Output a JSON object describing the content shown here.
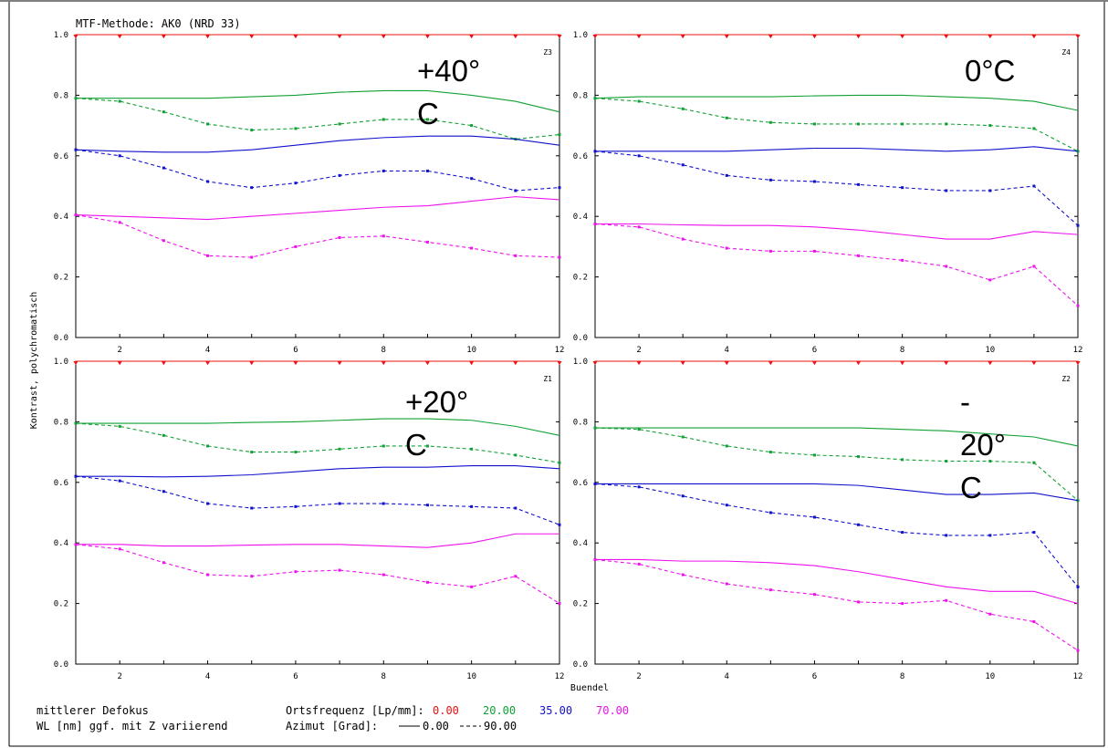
{
  "header": {
    "title": "MTF-Methode: AK0 (NRD 33)"
  },
  "axes": {
    "ylabel": "Kontrast, polychromatisch",
    "xlabel": "Buendel"
  },
  "footer": {
    "line1_left": "mittlerer Defokus",
    "line2_left": "WL [nm] ggf. mit Z variierend",
    "freq_label": "Ortsfrequenz [Lp/mm]:",
    "freq_values": [
      "0.00",
      "20.00",
      "35.00",
      "70.00"
    ],
    "azimut_label": "Azimut [Grad]:",
    "azimut_solid": "0.00",
    "azimut_dashed": "90.00"
  },
  "colors": {
    "0.00": "#ee1111",
    "20.00": "#11a033",
    "35.00": "#1111cc",
    "70.00": "#ee11ee"
  },
  "chart_data": [
    {
      "type": "line",
      "panel": "top-left",
      "zone": "Z3",
      "annotation": [
        "+40°",
        "C"
      ],
      "x": [
        1,
        2,
        3,
        4,
        5,
        6,
        7,
        8,
        9,
        10,
        11,
        12
      ],
      "xlim": [
        1,
        12
      ],
      "ylim": [
        0,
        1
      ],
      "xticks": [
        "2",
        "4",
        "6",
        "8",
        "10",
        "12"
      ],
      "yticks": [
        "0.0",
        "0.2",
        "0.4",
        "0.6",
        "0.8",
        "1.0"
      ],
      "series": [
        {
          "freq": "0.00",
          "azimut": "0.00",
          "values": [
            1,
            1,
            1,
            1,
            1,
            1,
            1,
            1,
            1,
            1,
            1,
            1
          ]
        },
        {
          "freq": "0.00",
          "azimut": "90.00",
          "values": [
            1,
            1,
            1,
            1,
            1,
            1,
            1,
            1,
            1,
            1,
            1,
            1
          ]
        },
        {
          "freq": "20.00",
          "azimut": "0.00",
          "values": [
            0.79,
            0.79,
            0.79,
            0.79,
            0.795,
            0.8,
            0.81,
            0.815,
            0.815,
            0.8,
            0.78,
            0.745
          ]
        },
        {
          "freq": "20.00",
          "azimut": "90.00",
          "values": [
            0.79,
            0.78,
            0.745,
            0.705,
            0.685,
            0.69,
            0.705,
            0.72,
            0.72,
            0.7,
            0.655,
            0.67
          ]
        },
        {
          "freq": "35.00",
          "azimut": "0.00",
          "values": [
            0.62,
            0.615,
            0.612,
            0.612,
            0.62,
            0.635,
            0.65,
            0.66,
            0.665,
            0.665,
            0.655,
            0.635
          ]
        },
        {
          "freq": "35.00",
          "azimut": "90.00",
          "values": [
            0.62,
            0.6,
            0.56,
            0.515,
            0.495,
            0.51,
            0.535,
            0.55,
            0.55,
            0.525,
            0.485,
            0.495
          ]
        },
        {
          "freq": "70.00",
          "azimut": "0.00",
          "values": [
            0.405,
            0.4,
            0.395,
            0.39,
            0.4,
            0.41,
            0.42,
            0.43,
            0.435,
            0.45,
            0.465,
            0.455
          ]
        },
        {
          "freq": "70.00",
          "azimut": "90.00",
          "values": [
            0.405,
            0.38,
            0.32,
            0.27,
            0.265,
            0.3,
            0.33,
            0.335,
            0.315,
            0.295,
            0.27,
            0.265
          ]
        }
      ]
    },
    {
      "type": "line",
      "panel": "top-right",
      "zone": "Z4",
      "annotation": [
        "0°C"
      ],
      "x": [
        1,
        2,
        3,
        4,
        5,
        6,
        7,
        8,
        9,
        10,
        11,
        12
      ],
      "xlim": [
        1,
        12
      ],
      "ylim": [
        0,
        1
      ],
      "xticks": [
        "2",
        "4",
        "6",
        "8",
        "10",
        "12"
      ],
      "yticks": [
        "0.0",
        "0.2",
        "0.4",
        "0.6",
        "0.8",
        "1.0"
      ],
      "series": [
        {
          "freq": "0.00",
          "azimut": "0.00",
          "values": [
            1,
            1,
            1,
            1,
            1,
            1,
            1,
            1,
            1,
            1,
            1,
            1
          ]
        },
        {
          "freq": "0.00",
          "azimut": "90.00",
          "values": [
            1,
            1,
            1,
            1,
            1,
            1,
            1,
            1,
            1,
            1,
            1,
            1
          ]
        },
        {
          "freq": "20.00",
          "azimut": "0.00",
          "values": [
            0.79,
            0.795,
            0.795,
            0.795,
            0.795,
            0.798,
            0.8,
            0.8,
            0.795,
            0.79,
            0.78,
            0.75
          ]
        },
        {
          "freq": "20.00",
          "azimut": "90.00",
          "values": [
            0.79,
            0.78,
            0.755,
            0.725,
            0.71,
            0.705,
            0.705,
            0.705,
            0.705,
            0.7,
            0.69,
            0.615
          ]
        },
        {
          "freq": "35.00",
          "azimut": "0.00",
          "values": [
            0.615,
            0.615,
            0.615,
            0.615,
            0.62,
            0.625,
            0.625,
            0.62,
            0.615,
            0.62,
            0.63,
            0.615
          ]
        },
        {
          "freq": "35.00",
          "azimut": "90.00",
          "values": [
            0.615,
            0.6,
            0.57,
            0.535,
            0.52,
            0.515,
            0.505,
            0.495,
            0.485,
            0.485,
            0.5,
            0.37
          ]
        },
        {
          "freq": "70.00",
          "azimut": "0.00",
          "values": [
            0.375,
            0.375,
            0.372,
            0.37,
            0.37,
            0.365,
            0.355,
            0.34,
            0.325,
            0.325,
            0.35,
            0.34
          ]
        },
        {
          "freq": "70.00",
          "azimut": "90.00",
          "values": [
            0.375,
            0.365,
            0.325,
            0.295,
            0.285,
            0.285,
            0.27,
            0.255,
            0.235,
            0.19,
            0.235,
            0.105
          ]
        }
      ]
    },
    {
      "type": "line",
      "panel": "bottom-left",
      "zone": "Z1",
      "annotation": [
        "+20°",
        "C"
      ],
      "x": [
        1,
        2,
        3,
        4,
        5,
        6,
        7,
        8,
        9,
        10,
        11,
        12
      ],
      "xlim": [
        1,
        12
      ],
      "ylim": [
        0,
        1
      ],
      "xticks": [
        "2",
        "4",
        "6",
        "8",
        "10",
        "12"
      ],
      "yticks": [
        "0.0",
        "0.2",
        "0.4",
        "0.6",
        "0.8",
        "1.0"
      ],
      "series": [
        {
          "freq": "0.00",
          "azimut": "0.00",
          "values": [
            1,
            1,
            1,
            1,
            1,
            1,
            1,
            1,
            1,
            1,
            1,
            1
          ]
        },
        {
          "freq": "0.00",
          "azimut": "90.00",
          "values": [
            1,
            1,
            1,
            1,
            1,
            1,
            1,
            1,
            1,
            1,
            1,
            1
          ]
        },
        {
          "freq": "20.00",
          "azimut": "0.00",
          "values": [
            0.795,
            0.795,
            0.795,
            0.795,
            0.798,
            0.8,
            0.805,
            0.81,
            0.81,
            0.805,
            0.785,
            0.755
          ]
        },
        {
          "freq": "20.00",
          "azimut": "90.00",
          "values": [
            0.795,
            0.785,
            0.755,
            0.72,
            0.7,
            0.7,
            0.71,
            0.72,
            0.72,
            0.71,
            0.69,
            0.665
          ]
        },
        {
          "freq": "35.00",
          "azimut": "0.00",
          "values": [
            0.62,
            0.62,
            0.618,
            0.62,
            0.625,
            0.635,
            0.645,
            0.65,
            0.65,
            0.655,
            0.655,
            0.645
          ]
        },
        {
          "freq": "35.00",
          "azimut": "90.00",
          "values": [
            0.62,
            0.605,
            0.57,
            0.53,
            0.515,
            0.52,
            0.53,
            0.53,
            0.525,
            0.52,
            0.515,
            0.46
          ]
        },
        {
          "freq": "70.00",
          "azimut": "0.00",
          "values": [
            0.395,
            0.395,
            0.39,
            0.39,
            0.393,
            0.395,
            0.395,
            0.39,
            0.385,
            0.4,
            0.43,
            0.43
          ]
        },
        {
          "freq": "70.00",
          "azimut": "90.00",
          "values": [
            0.395,
            0.38,
            0.335,
            0.295,
            0.29,
            0.305,
            0.31,
            0.295,
            0.27,
            0.255,
            0.29,
            0.2
          ]
        }
      ]
    },
    {
      "type": "line",
      "panel": "bottom-right",
      "zone": "Z2",
      "annotation": [
        "-",
        "20°",
        "C"
      ],
      "x": [
        1,
        2,
        3,
        4,
        5,
        6,
        7,
        8,
        9,
        10,
        11,
        12
      ],
      "xlim": [
        1,
        12
      ],
      "ylim": [
        0,
        1
      ],
      "xticks": [
        "2",
        "4",
        "6",
        "8",
        "10",
        "12"
      ],
      "yticks": [
        "0.0",
        "0.2",
        "0.4",
        "0.6",
        "0.8",
        "1.0"
      ],
      "series": [
        {
          "freq": "0.00",
          "azimut": "0.00",
          "values": [
            1,
            1,
            1,
            1,
            1,
            1,
            1,
            1,
            1,
            1,
            1,
            1
          ]
        },
        {
          "freq": "0.00",
          "azimut": "90.00",
          "values": [
            1,
            1,
            1,
            1,
            1,
            1,
            1,
            1,
            1,
            1,
            1,
            1
          ]
        },
        {
          "freq": "20.00",
          "azimut": "0.00",
          "values": [
            0.78,
            0.78,
            0.78,
            0.78,
            0.78,
            0.78,
            0.78,
            0.775,
            0.77,
            0.76,
            0.75,
            0.72
          ]
        },
        {
          "freq": "20.00",
          "azimut": "90.00",
          "values": [
            0.78,
            0.775,
            0.75,
            0.72,
            0.7,
            0.69,
            0.685,
            0.675,
            0.67,
            0.67,
            0.665,
            0.54
          ]
        },
        {
          "freq": "35.00",
          "azimut": "0.00",
          "values": [
            0.595,
            0.595,
            0.595,
            0.595,
            0.595,
            0.595,
            0.59,
            0.575,
            0.56,
            0.56,
            0.565,
            0.54
          ]
        },
        {
          "freq": "35.00",
          "azimut": "90.00",
          "values": [
            0.595,
            0.585,
            0.555,
            0.525,
            0.5,
            0.485,
            0.46,
            0.435,
            0.425,
            0.425,
            0.435,
            0.255
          ]
        },
        {
          "freq": "70.00",
          "azimut": "0.00",
          "values": [
            0.345,
            0.345,
            0.34,
            0.34,
            0.335,
            0.325,
            0.305,
            0.28,
            0.255,
            0.24,
            0.24,
            0.2
          ]
        },
        {
          "freq": "70.00",
          "azimut": "90.00",
          "values": [
            0.345,
            0.33,
            0.295,
            0.265,
            0.245,
            0.23,
            0.205,
            0.2,
            0.21,
            0.165,
            0.14,
            0.045
          ]
        }
      ]
    }
  ]
}
